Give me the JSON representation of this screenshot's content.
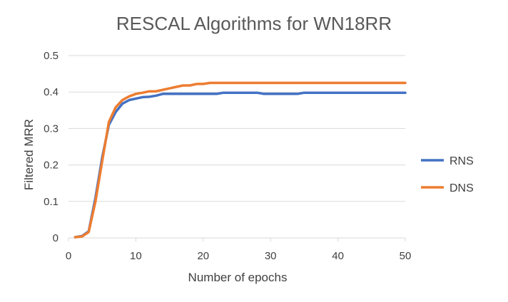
{
  "chart_data": {
    "type": "line",
    "title": "RESCAL Algorithms for WN18RR",
    "xlabel": "Number of epochs",
    "ylabel": "Filtered MRR",
    "xlim": [
      0,
      50
    ],
    "ylim": [
      0,
      0.5
    ],
    "x_ticks": [
      "0",
      "10",
      "20",
      "30",
      "40",
      "50"
    ],
    "y_ticks": [
      "0",
      "0.1",
      "0.2",
      "0.3",
      "0.4",
      "0.5"
    ],
    "grid": "horizontal",
    "legend_position": "right",
    "x": [
      1,
      2,
      3,
      4,
      5,
      6,
      7,
      8,
      9,
      10,
      11,
      12,
      13,
      14,
      15,
      16,
      17,
      18,
      19,
      20,
      21,
      22,
      23,
      24,
      25,
      26,
      27,
      28,
      29,
      30,
      31,
      32,
      33,
      34,
      35,
      36,
      37,
      38,
      39,
      40,
      41,
      42,
      43,
      44,
      45,
      46,
      47,
      48,
      49,
      50
    ],
    "series": [
      {
        "name": "RNS",
        "color": "#4472C4",
        "values": [
          0.002,
          0.005,
          0.018,
          0.11,
          0.22,
          0.31,
          0.345,
          0.368,
          0.378,
          0.382,
          0.386,
          0.387,
          0.39,
          0.395,
          0.395,
          0.395,
          0.395,
          0.395,
          0.395,
          0.395,
          0.395,
          0.395,
          0.398,
          0.398,
          0.398,
          0.398,
          0.398,
          0.398,
          0.395,
          0.395,
          0.395,
          0.395,
          0.395,
          0.395,
          0.398,
          0.398,
          0.398,
          0.398,
          0.398,
          0.398,
          0.398,
          0.398,
          0.398,
          0.398,
          0.398,
          0.398,
          0.398,
          0.398,
          0.398,
          0.398
        ]
      },
      {
        "name": "DNS",
        "color": "#ED7D31",
        "values": [
          0.002,
          0.004,
          0.016,
          0.1,
          0.21,
          0.318,
          0.358,
          0.378,
          0.388,
          0.395,
          0.398,
          0.402,
          0.402,
          0.406,
          0.41,
          0.414,
          0.418,
          0.418,
          0.422,
          0.422,
          0.425,
          0.425,
          0.425,
          0.425,
          0.425,
          0.425,
          0.425,
          0.425,
          0.425,
          0.425,
          0.425,
          0.425,
          0.425,
          0.425,
          0.425,
          0.425,
          0.425,
          0.425,
          0.425,
          0.425,
          0.425,
          0.425,
          0.425,
          0.425,
          0.425,
          0.425,
          0.425,
          0.425,
          0.425,
          0.425
        ]
      }
    ]
  }
}
